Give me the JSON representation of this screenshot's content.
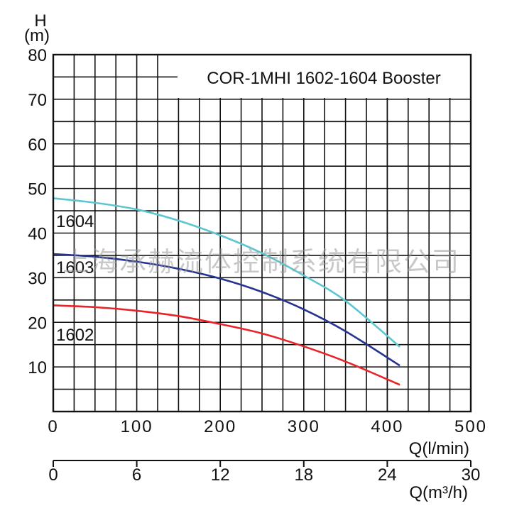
{
  "chart_data": {
    "type": "line",
    "title": "COR-1MHI 1602-1604 Booster",
    "ylabel_top": "H",
    "ylabel_bottom": "(m)",
    "xlabel": "Q(l/min)",
    "x2label": "Q(m³/h)",
    "ylim": [
      0,
      80
    ],
    "xlim": [
      0,
      500
    ],
    "x2lim": [
      0,
      30
    ],
    "yticks": [
      "80",
      "70",
      "60",
      "50",
      "40",
      "30",
      "20",
      "10"
    ],
    "xticks": [
      "0",
      "100",
      "200",
      "300",
      "400",
      "500"
    ],
    "x2ticks": [
      "0",
      "6",
      "12",
      "18",
      "24",
      "30"
    ],
    "grid": true,
    "watermark": "上海承赫流体控制系统有限公司",
    "series": [
      {
        "name": "1604",
        "color": "#5ec6d0",
        "x": [
          0,
          50,
          100,
          150,
          200,
          250,
          300,
          350,
          415
        ],
        "y": [
          47.8,
          46.8,
          45.3,
          42.8,
          39.5,
          35.5,
          30.5,
          24.8,
          14.5
        ]
      },
      {
        "name": "1603",
        "color": "#26348f",
        "x": [
          0,
          50,
          100,
          150,
          200,
          250,
          300,
          350,
          415
        ],
        "y": [
          35.3,
          34.7,
          33.6,
          32.0,
          29.8,
          26.8,
          22.9,
          18.0,
          10.3
        ]
      },
      {
        "name": "1602",
        "color": "#e8242a",
        "x": [
          0,
          50,
          100,
          150,
          200,
          250,
          300,
          350,
          415
        ],
        "y": [
          23.8,
          23.4,
          22.6,
          21.4,
          19.6,
          17.5,
          14.6,
          11.2,
          6.0
        ]
      }
    ]
  }
}
